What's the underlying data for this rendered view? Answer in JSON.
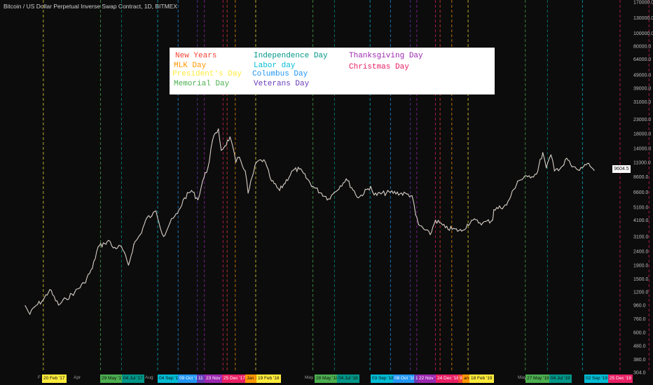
{
  "title": "Bitcoin / US Dollar Perpetual Inverse Swap Contract, 1D, BITMEX",
  "last_price": "9604.5",
  "legend": {
    "items": [
      {
        "label": "New Years",
        "color": "#f44336"
      },
      {
        "label": "MLK Day",
        "color": "#ff9800"
      },
      {
        "label": "President's Day",
        "color": "#ffeb3b"
      },
      {
        "label": "Memorial Day",
        "color": "#4caf50"
      },
      {
        "label": "Independence Day",
        "color": "#009688"
      },
      {
        "label": "Labor day",
        "color": "#00bcd4"
      },
      {
        "label": "Columbus Day",
        "color": "#2196f3"
      },
      {
        "label": "Veterans Day",
        "color": "#673ab7"
      },
      {
        "label": "Thanksgiving Day",
        "color": "#9c27b0"
      },
      {
        "label": "Christmas Day",
        "color": "#e91e63"
      }
    ]
  },
  "chart_data": {
    "type": "line",
    "title": "Bitcoin / US Dollar Perpetual Inverse Swap Contract, 1D, BITMEX",
    "y_scale": "log",
    "y_ticks": [
      "170000.0",
      "130000.0",
      "100000.0",
      "80000.0",
      "64000.0",
      "49000.0",
      "39000.0",
      "31000.0",
      "23000.0",
      "18000.0",
      "14000.0",
      "11000.0",
      "8600.0",
      "6600.0",
      "5100.0",
      "4100.0",
      "3100.0",
      "2400.0",
      "1900.0",
      "1500.0",
      "1200.0",
      "960.0",
      "760.0",
      "600.0",
      "480.0",
      "380.0",
      "304.0"
    ],
    "x_labels": [
      "F",
      "20 Feb '17",
      "Apr",
      "29 May '17",
      "04 Jul '17",
      "Aug",
      "04 Sep '17",
      "09 Oct '17",
      "11",
      "23 Nov '1",
      "25 Dec '17",
      "Jan 1",
      "19 Feb '18",
      "May",
      "28 May '18",
      "04 Jul '18",
      "03 Sep '18",
      "08 Oct '18",
      "11",
      "22 Nov '1",
      "24 Dec '18",
      "9",
      "an",
      "18 Feb '19",
      "May",
      "27 May '19",
      "04 Jul '19",
      "02 Sep '19",
      "25 Dec '19"
    ],
    "series": [
      {
        "points": [
          [
            "2017-01-20",
            950
          ],
          [
            "2017-01-28",
            820
          ],
          [
            "2017-02-05",
            930
          ],
          [
            "2017-02-20",
            1050
          ],
          [
            "2017-03-03",
            1250
          ],
          [
            "2017-03-18",
            960
          ],
          [
            "2017-03-31",
            1070
          ],
          [
            "2017-04-15",
            1200
          ],
          [
            "2017-05-01",
            1400
          ],
          [
            "2017-05-15",
            1800
          ],
          [
            "2017-05-25",
            2600
          ],
          [
            "2017-06-05",
            2750
          ],
          [
            "2017-06-12",
            2900
          ],
          [
            "2017-06-20",
            2550
          ],
          [
            "2017-07-04",
            2600
          ],
          [
            "2017-07-16",
            1900
          ],
          [
            "2017-07-25",
            2700
          ],
          [
            "2017-08-05",
            3200
          ],
          [
            "2017-08-17",
            4300
          ],
          [
            "2017-08-25",
            4400
          ],
          [
            "2017-09-01",
            4800
          ],
          [
            "2017-09-14",
            3100
          ],
          [
            "2017-09-25",
            3900
          ],
          [
            "2017-10-08",
            4600
          ],
          [
            "2017-10-20",
            6000
          ],
          [
            "2017-11-01",
            6800
          ],
          [
            "2017-11-12",
            5800
          ],
          [
            "2017-11-20",
            8000
          ],
          [
            "2017-11-29",
            10000
          ],
          [
            "2017-12-07",
            16000
          ],
          [
            "2017-12-17",
            19500
          ],
          [
            "2017-12-22",
            13500
          ],
          [
            "2017-12-28",
            14500
          ],
          [
            "2018-01-06",
            17000
          ],
          [
            "2018-01-16",
            11000
          ],
          [
            "2018-01-22",
            12000
          ],
          [
            "2018-02-01",
            9500
          ],
          [
            "2018-02-06",
            6500
          ],
          [
            "2018-02-20",
            11000
          ],
          [
            "2018-03-05",
            11500
          ],
          [
            "2018-03-18",
            8000
          ],
          [
            "2018-04-01",
            6800
          ],
          [
            "2018-04-24",
            9600
          ],
          [
            "2018-05-05",
            9800
          ],
          [
            "2018-05-28",
            7300
          ],
          [
            "2018-06-24",
            5900
          ],
          [
            "2018-07-04",
            6600
          ],
          [
            "2018-07-24",
            8300
          ],
          [
            "2018-08-14",
            6000
          ],
          [
            "2018-09-04",
            7300
          ],
          [
            "2018-09-10",
            6300
          ],
          [
            "2018-10-08",
            6600
          ],
          [
            "2018-11-05",
            6400
          ],
          [
            "2018-11-14",
            6200
          ],
          [
            "2018-11-20",
            4500
          ],
          [
            "2018-11-25",
            3800
          ],
          [
            "2018-12-15",
            3200
          ],
          [
            "2018-12-24",
            4100
          ],
          [
            "2019-01-10",
            3600
          ],
          [
            "2019-02-07",
            3400
          ],
          [
            "2019-02-24",
            4100
          ],
          [
            "2019-03-15",
            3900
          ],
          [
            "2019-04-01",
            4100
          ],
          [
            "2019-04-03",
            4900
          ],
          [
            "2019-04-25",
            5300
          ],
          [
            "2019-05-14",
            8000
          ],
          [
            "2019-05-31",
            8600
          ],
          [
            "2019-06-15",
            9000
          ],
          [
            "2019-06-26",
            13000
          ],
          [
            "2019-07-02",
            10000
          ],
          [
            "2019-07-10",
            12500
          ],
          [
            "2019-07-16",
            9500
          ],
          [
            "2019-08-01",
            10500
          ],
          [
            "2019-08-06",
            11800
          ],
          [
            "2019-08-15",
            10200
          ],
          [
            "2019-08-28",
            9600
          ],
          [
            "2019-09-06",
            10600
          ],
          [
            "2019-09-15",
            10300
          ],
          [
            "2019-09-22",
            9604.5
          ]
        ]
      }
    ],
    "holidays": [
      {
        "date": "2017-02-20",
        "type": "President's Day"
      },
      {
        "date": "2017-05-29",
        "type": "Memorial Day"
      },
      {
        "date": "2017-07-04",
        "type": "Independence Day"
      },
      {
        "date": "2017-09-04",
        "type": "Labor day"
      },
      {
        "date": "2017-10-09",
        "type": "Columbus Day"
      },
      {
        "date": "2017-11-11",
        "type": "Veterans Day"
      },
      {
        "date": "2017-11-23",
        "type": "Thanksgiving Day"
      },
      {
        "date": "2017-12-25",
        "type": "Christmas Day"
      },
      {
        "date": "2018-01-01",
        "type": "New Years"
      },
      {
        "date": "2018-01-15",
        "type": "MLK Day"
      },
      {
        "date": "2018-02-19",
        "type": "President's Day"
      },
      {
        "date": "2018-05-28",
        "type": "Memorial Day"
      },
      {
        "date": "2018-07-04",
        "type": "Independence Day"
      },
      {
        "date": "2018-09-03",
        "type": "Labor day"
      },
      {
        "date": "2018-10-08",
        "type": "Columbus Day"
      },
      {
        "date": "2018-11-11",
        "type": "Veterans Day"
      },
      {
        "date": "2018-11-22",
        "type": "Thanksgiving Day"
      },
      {
        "date": "2018-12-24",
        "type": "Christmas Day"
      },
      {
        "date": "2019-01-01",
        "type": "New Years"
      },
      {
        "date": "2019-01-21",
        "type": "MLK Day"
      },
      {
        "date": "2019-02-18",
        "type": "President's Day"
      },
      {
        "date": "2019-05-27",
        "type": "Memorial Day"
      },
      {
        "date": "2019-07-04",
        "type": "Independence Day"
      },
      {
        "date": "2019-09-02",
        "type": "Labor day"
      },
      {
        "date": "2019-12-25",
        "type": "Christmas Day"
      }
    ],
    "grid": false,
    "legend_position": "top-left"
  }
}
